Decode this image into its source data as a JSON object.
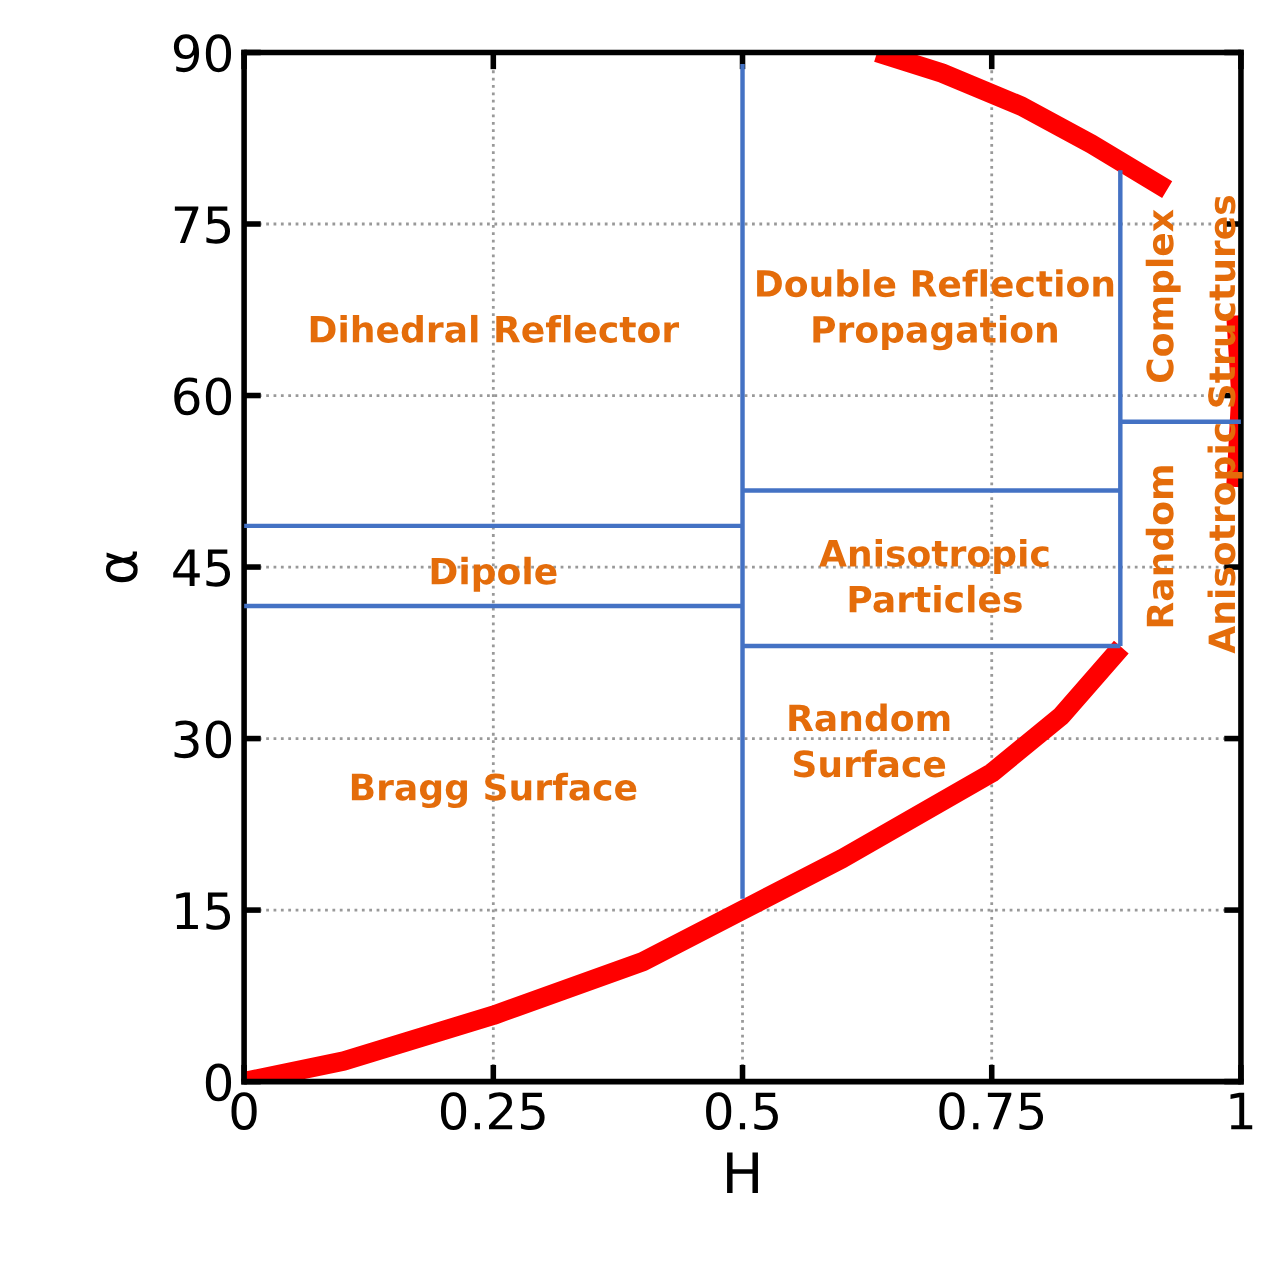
{
  "chart_data": {
    "type": "line",
    "xlabel": "H",
    "ylabel": "α",
    "xlim": [
      0,
      1
    ],
    "ylim": [
      0,
      90
    ],
    "xticks": [
      0,
      0.25,
      0.5,
      0.75,
      1
    ],
    "yticks": [
      0,
      15,
      30,
      45,
      60,
      75,
      90
    ],
    "grid": true,
    "marker": "none",
    "line_style": "solid",
    "series": [
      {
        "color": "#ff0000",
        "x": [
          0,
          0.1,
          0.25,
          0.4,
          0.5,
          0.6,
          0.75,
          0.82,
          0.88
        ],
        "values": [
          0,
          1.8,
          5.8,
          10.5,
          15,
          19.5,
          27,
          32,
          38
        ]
      },
      {
        "color": "#ff0000",
        "x": [
          0.635,
          0.7,
          0.78,
          0.85,
          0.926
        ],
        "values": [
          90,
          88.2,
          85.3,
          82,
          78
        ]
      },
      {
        "color": "#ff0000",
        "x": [
          0.995,
          1,
          0.995
        ],
        "values": [
          67,
          60,
          52
        ]
      },
      {
        "color": "#4472c4",
        "x": [
          0.5,
          0.5
        ],
        "values": [
          16,
          89
        ]
      },
      {
        "color": "#4472c4",
        "x": [
          0,
          0.5
        ],
        "values": [
          48.6,
          48.6
        ]
      },
      {
        "color": "#4472c4",
        "x": [
          0,
          0.5
        ],
        "values": [
          41.6,
          41.6
        ]
      },
      {
        "color": "#4472c4",
        "x": [
          0.5,
          0.879
        ],
        "values": [
          51.7,
          51.7
        ]
      },
      {
        "color": "#4472c4",
        "x": [
          0.5,
          0.879
        ],
        "values": [
          38.1,
          38.1
        ]
      },
      {
        "color": "#4472c4",
        "x": [
          0.879,
          0.879
        ],
        "values": [
          38.1,
          79.7
        ]
      },
      {
        "color": "#4472c4",
        "x": [
          0.879,
          1
        ],
        "values": [
          57.7,
          57.7
        ]
      }
    ],
    "annotations": [
      "Dihedral Reflector",
      "Dipole",
      "Bragg Surface",
      "Double Reflection\nPropagation",
      "Anisotropic\nParticles",
      "Random\nSurface",
      "Complex",
      "Random",
      "Anisotropic Structures"
    ]
  }
}
